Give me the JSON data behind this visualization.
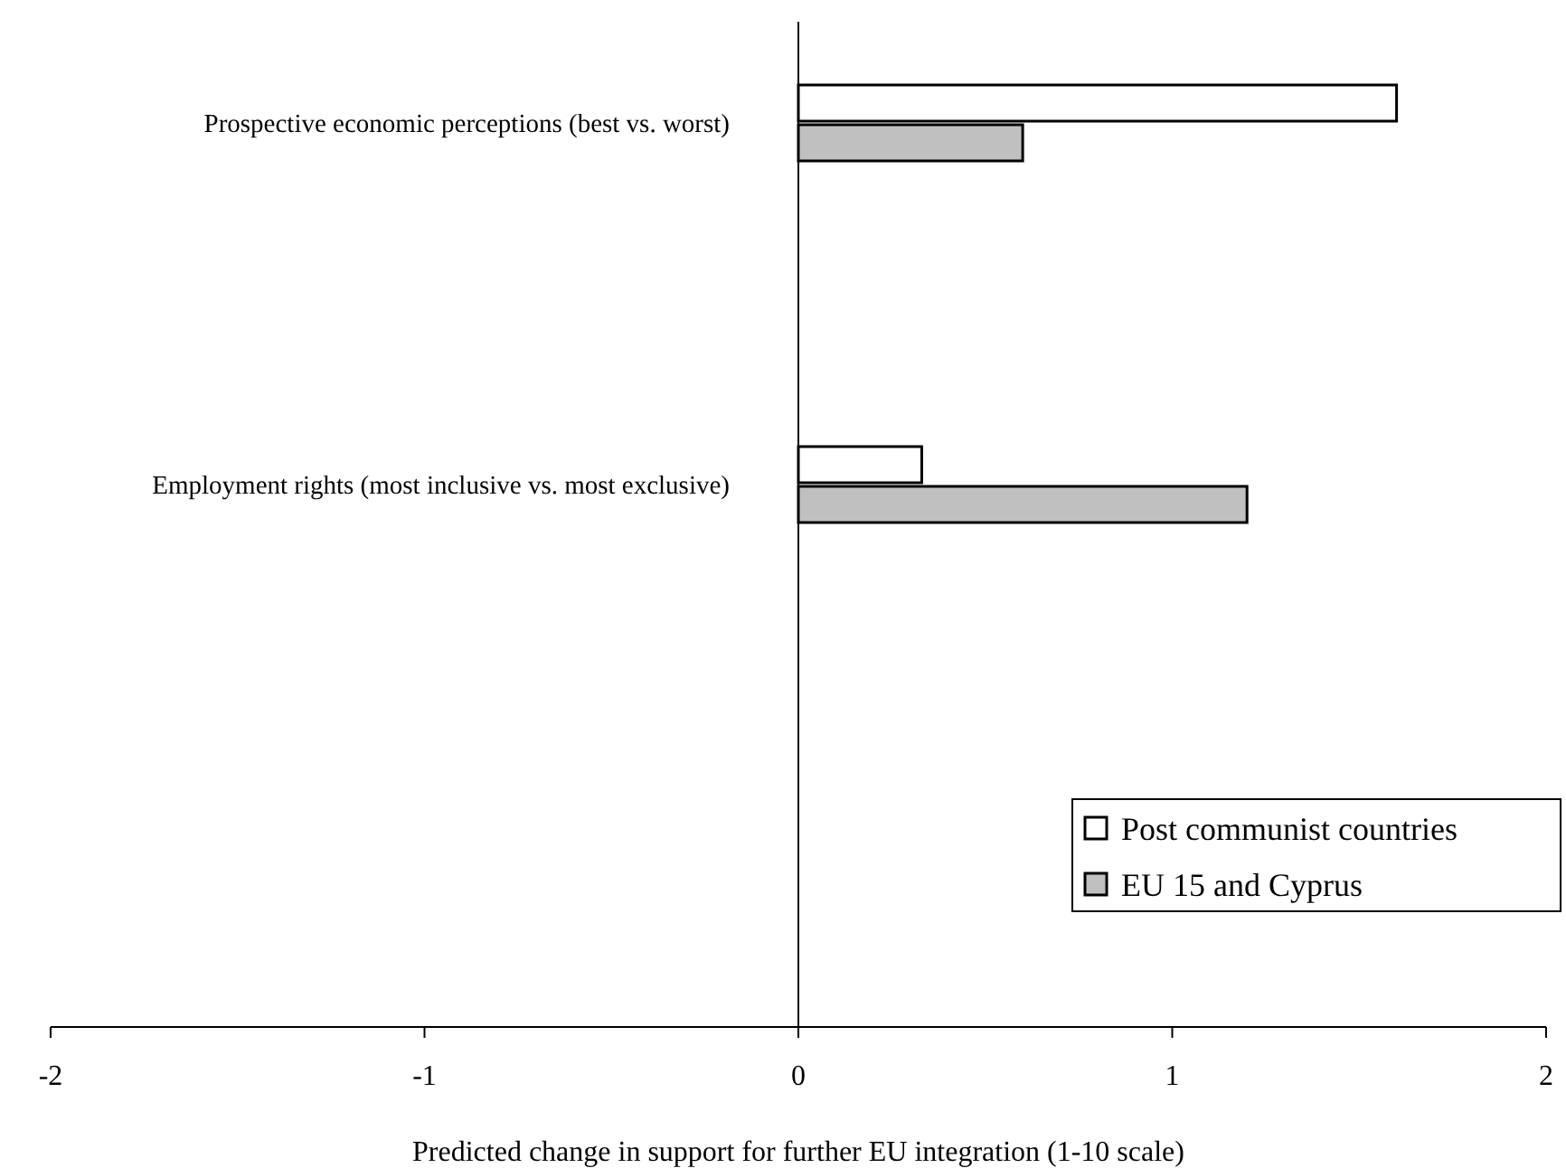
{
  "chart_data": {
    "type": "bar",
    "orientation": "horizontal",
    "xlabel": "Predicted change in support for further EU integration (1-10 scale)",
    "categories": [
      "Prospective economic perceptions (best vs. worst)",
      "Employment rights (most inclusive vs. most exclusive)",
      null
    ],
    "series": [
      {
        "name": "Post communist countries",
        "color": "#ffffff",
        "values": [
          1.6,
          0.33,
          null
        ]
      },
      {
        "name": "EU 15 and Cyprus",
        "color": "#c0c0c0",
        "values": [
          0.6,
          1.2,
          null
        ]
      }
    ],
    "xlim": [
      -2,
      2
    ],
    "xticks": [
      -2,
      -1,
      0,
      1,
      2
    ],
    "legend": "bottom right"
  }
}
